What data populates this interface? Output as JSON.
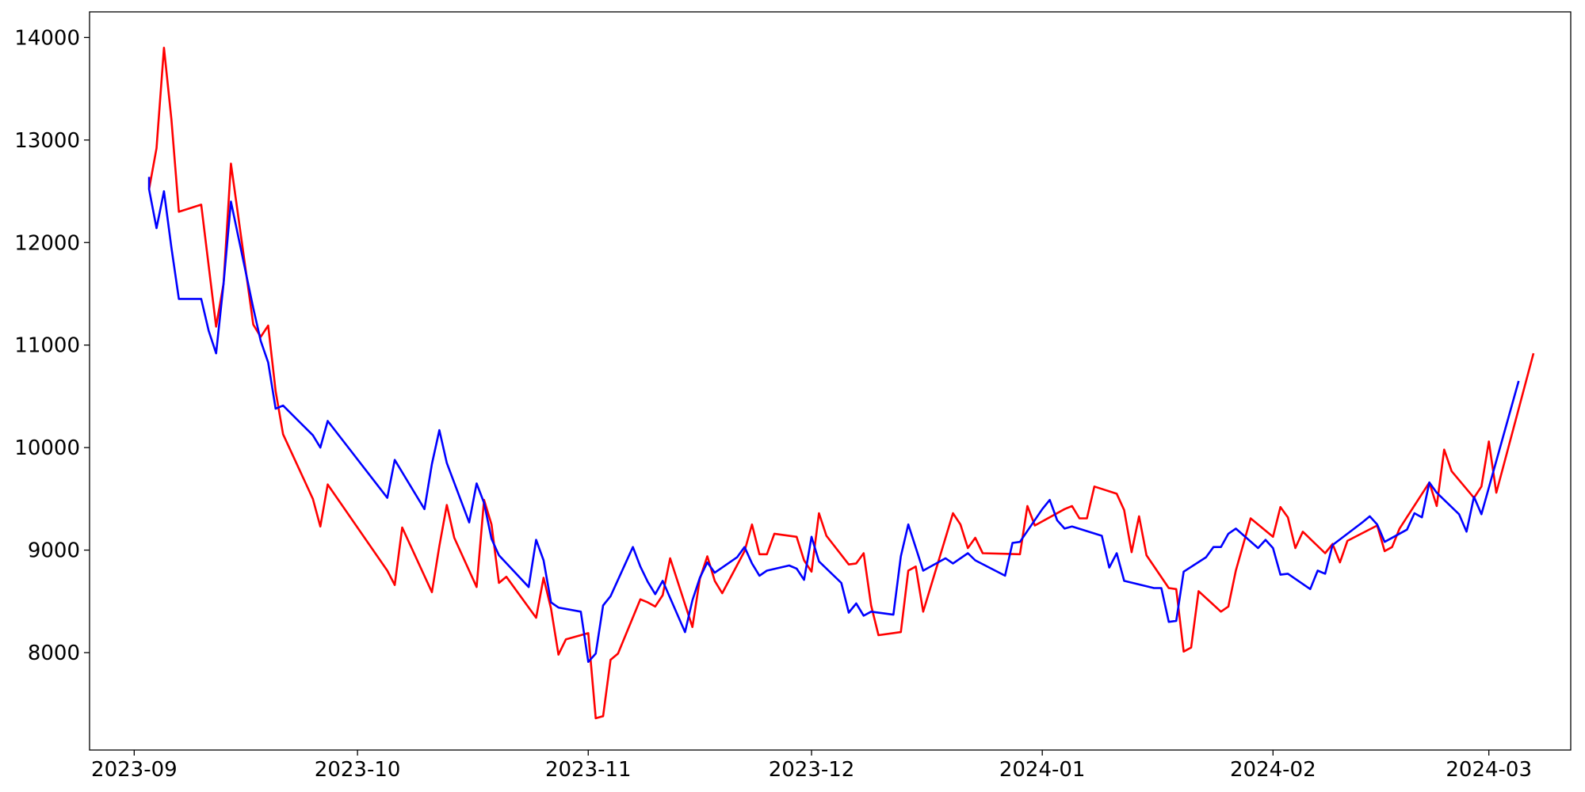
{
  "chart_data": {
    "type": "line",
    "title": "",
    "xlabel": "",
    "ylabel": "",
    "grid": false,
    "legend": "none",
    "xlim": [
      "2023-08-26",
      "2024-03-12"
    ],
    "ylim": [
      7050,
      14250
    ],
    "x_ticks": [
      {
        "date": "2023-09-01",
        "label": "2023-09"
      },
      {
        "date": "2023-10-01",
        "label": "2023-10"
      },
      {
        "date": "2023-11-01",
        "label": "2023-11"
      },
      {
        "date": "2023-12-01",
        "label": "2023-12"
      },
      {
        "date": "2024-01-01",
        "label": "2024-01"
      },
      {
        "date": "2024-02-01",
        "label": "2024-02"
      },
      {
        "date": "2024-03-01",
        "label": "2024-03"
      }
    ],
    "y_ticks": [
      {
        "value": 8000,
        "label": "8000"
      },
      {
        "value": 9000,
        "label": "9000"
      },
      {
        "value": 10000,
        "label": "10000"
      },
      {
        "value": 11000,
        "label": "11000"
      },
      {
        "value": 12000,
        "label": "12000"
      },
      {
        "value": 13000,
        "label": "13000"
      },
      {
        "value": 14000,
        "label": "14000"
      }
    ],
    "series": [
      {
        "color": "#ff0000",
        "points": [
          [
            "2023-09-03",
            12520
          ],
          [
            "2023-09-04",
            12920
          ],
          [
            "2023-09-05",
            13900
          ],
          [
            "2023-09-06",
            13200
          ],
          [
            "2023-09-07",
            12300
          ],
          [
            "2023-09-10",
            12370
          ],
          [
            "2023-09-12",
            11180
          ],
          [
            "2023-09-13",
            11600
          ],
          [
            "2023-09-14",
            12770
          ],
          [
            "2023-09-17",
            11200
          ],
          [
            "2023-09-18",
            11080
          ],
          [
            "2023-09-19",
            11190
          ],
          [
            "2023-09-20",
            10550
          ],
          [
            "2023-09-21",
            10130
          ],
          [
            "2023-09-25",
            9500
          ],
          [
            "2023-09-26",
            9230
          ],
          [
            "2023-09-27",
            9640
          ],
          [
            "2023-10-05",
            8800
          ],
          [
            "2023-10-06",
            8660
          ],
          [
            "2023-10-07",
            9220
          ],
          [
            "2023-10-11",
            8590
          ],
          [
            "2023-10-12",
            9040
          ],
          [
            "2023-10-13",
            9440
          ],
          [
            "2023-10-14",
            9120
          ],
          [
            "2023-10-17",
            8640
          ],
          [
            "2023-10-18",
            9490
          ],
          [
            "2023-10-19",
            9250
          ],
          [
            "2023-10-20",
            8680
          ],
          [
            "2023-10-21",
            8740
          ],
          [
            "2023-10-25",
            8340
          ],
          [
            "2023-10-26",
            8730
          ],
          [
            "2023-10-27",
            8430
          ],
          [
            "2023-10-28",
            7980
          ],
          [
            "2023-10-29",
            8130
          ],
          [
            "2023-11-01",
            8190
          ],
          [
            "2023-11-02",
            7360
          ],
          [
            "2023-11-03",
            7380
          ],
          [
            "2023-11-04",
            7930
          ],
          [
            "2023-11-05",
            7990
          ],
          [
            "2023-11-08",
            8520
          ],
          [
            "2023-11-09",
            8490
          ],
          [
            "2023-11-10",
            8450
          ],
          [
            "2023-11-11",
            8560
          ],
          [
            "2023-11-12",
            8920
          ],
          [
            "2023-11-15",
            8250
          ],
          [
            "2023-11-16",
            8720
          ],
          [
            "2023-11-17",
            8940
          ],
          [
            "2023-11-18",
            8700
          ],
          [
            "2023-11-19",
            8580
          ],
          [
            "2023-11-22",
            8990
          ],
          [
            "2023-11-23",
            9250
          ],
          [
            "2023-11-24",
            8960
          ],
          [
            "2023-11-25",
            8960
          ],
          [
            "2023-11-26",
            9160
          ],
          [
            "2023-11-29",
            9130
          ],
          [
            "2023-11-30",
            8900
          ],
          [
            "2023-12-01",
            8790
          ],
          [
            "2023-12-02",
            9360
          ],
          [
            "2023-12-03",
            9140
          ],
          [
            "2023-12-06",
            8860
          ],
          [
            "2023-12-07",
            8870
          ],
          [
            "2023-12-08",
            8970
          ],
          [
            "2023-12-09",
            8460
          ],
          [
            "2023-12-10",
            8170
          ],
          [
            "2023-12-13",
            8200
          ],
          [
            "2023-12-14",
            8800
          ],
          [
            "2023-12-15",
            8840
          ],
          [
            "2023-12-16",
            8400
          ],
          [
            "2023-12-20",
            9360
          ],
          [
            "2023-12-21",
            9250
          ],
          [
            "2023-12-22",
            9020
          ],
          [
            "2023-12-23",
            9120
          ],
          [
            "2023-12-24",
            8970
          ],
          [
            "2023-12-29",
            8960
          ],
          [
            "2023-12-30",
            9430
          ],
          [
            "2023-12-31",
            9240
          ],
          [
            "2024-01-04",
            9400
          ],
          [
            "2024-01-05",
            9430
          ],
          [
            "2024-01-06",
            9310
          ],
          [
            "2024-01-07",
            9310
          ],
          [
            "2024-01-08",
            9620
          ],
          [
            "2024-01-11",
            9550
          ],
          [
            "2024-01-12",
            9390
          ],
          [
            "2024-01-13",
            8980
          ],
          [
            "2024-01-14",
            9330
          ],
          [
            "2024-01-15",
            8950
          ],
          [
            "2024-01-18",
            8630
          ],
          [
            "2024-01-19",
            8620
          ],
          [
            "2024-01-20",
            8010
          ],
          [
            "2024-01-21",
            8050
          ],
          [
            "2024-01-22",
            8600
          ],
          [
            "2024-01-25",
            8400
          ],
          [
            "2024-01-26",
            8450
          ],
          [
            "2024-01-27",
            8800
          ],
          [
            "2024-01-29",
            9310
          ],
          [
            "2024-02-01",
            9130
          ],
          [
            "2024-02-02",
            9420
          ],
          [
            "2024-02-03",
            9320
          ],
          [
            "2024-02-04",
            9020
          ],
          [
            "2024-02-05",
            9180
          ],
          [
            "2024-02-08",
            8970
          ],
          [
            "2024-02-09",
            9060
          ],
          [
            "2024-02-10",
            8880
          ],
          [
            "2024-02-11",
            9090
          ],
          [
            "2024-02-15",
            9240
          ],
          [
            "2024-02-16",
            8990
          ],
          [
            "2024-02-17",
            9030
          ],
          [
            "2024-02-18",
            9210
          ],
          [
            "2024-02-22",
            9660
          ],
          [
            "2024-02-23",
            9430
          ],
          [
            "2024-02-24",
            9980
          ],
          [
            "2024-02-25",
            9770
          ],
          [
            "2024-02-28",
            9510
          ],
          [
            "2024-02-29",
            9620
          ],
          [
            "2024-03-01",
            10060
          ],
          [
            "2024-03-02",
            9560
          ],
          [
            "2024-03-07",
            10920
          ]
        ]
      },
      {
        "color": "#0000ff",
        "points": [
          [
            "2023-09-03",
            12640
          ],
          [
            "2023-09-03",
            12520
          ],
          [
            "2023-09-04",
            12140
          ],
          [
            "2023-09-05",
            12500
          ],
          [
            "2023-09-06",
            11950
          ],
          [
            "2023-09-07",
            11450
          ],
          [
            "2023-09-10",
            11450
          ],
          [
            "2023-09-11",
            11140
          ],
          [
            "2023-09-12",
            10920
          ],
          [
            "2023-09-13",
            11600
          ],
          [
            "2023-09-14",
            12400
          ],
          [
            "2023-09-17",
            11360
          ],
          [
            "2023-09-18",
            11040
          ],
          [
            "2023-09-19",
            10830
          ],
          [
            "2023-09-20",
            10380
          ],
          [
            "2023-09-21",
            10410
          ],
          [
            "2023-09-25",
            10120
          ],
          [
            "2023-09-26",
            10000
          ],
          [
            "2023-09-27",
            10260
          ],
          [
            "2023-10-05",
            9510
          ],
          [
            "2023-10-06",
            9880
          ],
          [
            "2023-10-10",
            9400
          ],
          [
            "2023-10-11",
            9840
          ],
          [
            "2023-10-12",
            10170
          ],
          [
            "2023-10-13",
            9850
          ],
          [
            "2023-10-16",
            9270
          ],
          [
            "2023-10-17",
            9650
          ],
          [
            "2023-10-18",
            9460
          ],
          [
            "2023-10-19",
            9110
          ],
          [
            "2023-10-20",
            8950
          ],
          [
            "2023-10-24",
            8640
          ],
          [
            "2023-10-25",
            9100
          ],
          [
            "2023-10-26",
            8900
          ],
          [
            "2023-10-27",
            8490
          ],
          [
            "2023-10-28",
            8440
          ],
          [
            "2023-10-31",
            8400
          ],
          [
            "2023-11-01",
            7910
          ],
          [
            "2023-11-02",
            7990
          ],
          [
            "2023-11-03",
            8460
          ],
          [
            "2023-11-04",
            8550
          ],
          [
            "2023-11-07",
            9030
          ],
          [
            "2023-11-08",
            8840
          ],
          [
            "2023-11-09",
            8690
          ],
          [
            "2023-11-10",
            8570
          ],
          [
            "2023-11-11",
            8700
          ],
          [
            "2023-11-14",
            8200
          ],
          [
            "2023-11-15",
            8510
          ],
          [
            "2023-11-16",
            8730
          ],
          [
            "2023-11-17",
            8880
          ],
          [
            "2023-11-18",
            8780
          ],
          [
            "2023-11-21",
            8930
          ],
          [
            "2023-11-22",
            9030
          ],
          [
            "2023-11-23",
            8870
          ],
          [
            "2023-11-24",
            8750
          ],
          [
            "2023-11-25",
            8800
          ],
          [
            "2023-11-28",
            8850
          ],
          [
            "2023-11-29",
            8820
          ],
          [
            "2023-11-30",
            8710
          ],
          [
            "2023-12-01",
            9130
          ],
          [
            "2023-12-02",
            8890
          ],
          [
            "2023-12-05",
            8680
          ],
          [
            "2023-12-06",
            8390
          ],
          [
            "2023-12-07",
            8480
          ],
          [
            "2023-12-08",
            8360
          ],
          [
            "2023-12-09",
            8400
          ],
          [
            "2023-12-12",
            8370
          ],
          [
            "2023-12-13",
            8940
          ],
          [
            "2023-12-14",
            9250
          ],
          [
            "2023-12-16",
            8800
          ],
          [
            "2023-12-19",
            8920
          ],
          [
            "2023-12-20",
            8870
          ],
          [
            "2023-12-22",
            8970
          ],
          [
            "2023-12-23",
            8900
          ],
          [
            "2023-12-27",
            8750
          ],
          [
            "2023-12-28",
            9070
          ],
          [
            "2023-12-29",
            9080
          ],
          [
            "2024-01-01",
            9400
          ],
          [
            "2024-01-02",
            9490
          ],
          [
            "2024-01-03",
            9290
          ],
          [
            "2024-01-04",
            9210
          ],
          [
            "2024-01-05",
            9230
          ],
          [
            "2024-01-09",
            9140
          ],
          [
            "2024-01-10",
            8830
          ],
          [
            "2024-01-11",
            8970
          ],
          [
            "2024-01-12",
            8700
          ],
          [
            "2024-01-16",
            8630
          ],
          [
            "2024-01-17",
            8630
          ],
          [
            "2024-01-18",
            8300
          ],
          [
            "2024-01-19",
            8310
          ],
          [
            "2024-01-20",
            8790
          ],
          [
            "2024-01-23",
            8930
          ],
          [
            "2024-01-24",
            9030
          ],
          [
            "2024-01-25",
            9030
          ],
          [
            "2024-01-26",
            9160
          ],
          [
            "2024-01-27",
            9210
          ],
          [
            "2024-01-30",
            9020
          ],
          [
            "2024-01-31",
            9100
          ],
          [
            "2024-02-01",
            9020
          ],
          [
            "2024-02-02",
            8760
          ],
          [
            "2024-02-03",
            8770
          ],
          [
            "2024-02-06",
            8620
          ],
          [
            "2024-02-07",
            8800
          ],
          [
            "2024-02-08",
            8770
          ],
          [
            "2024-02-09",
            9050
          ],
          [
            "2024-02-13",
            9270
          ],
          [
            "2024-02-14",
            9330
          ],
          [
            "2024-02-15",
            9250
          ],
          [
            "2024-02-16",
            9080
          ],
          [
            "2024-02-19",
            9200
          ],
          [
            "2024-02-20",
            9360
          ],
          [
            "2024-02-21",
            9320
          ],
          [
            "2024-02-22",
            9660
          ],
          [
            "2024-02-23",
            9560
          ],
          [
            "2024-02-26",
            9350
          ],
          [
            "2024-02-27",
            9180
          ],
          [
            "2024-02-28",
            9520
          ],
          [
            "2024-02-29",
            9350
          ],
          [
            "2024-03-05",
            10650
          ]
        ]
      }
    ]
  }
}
